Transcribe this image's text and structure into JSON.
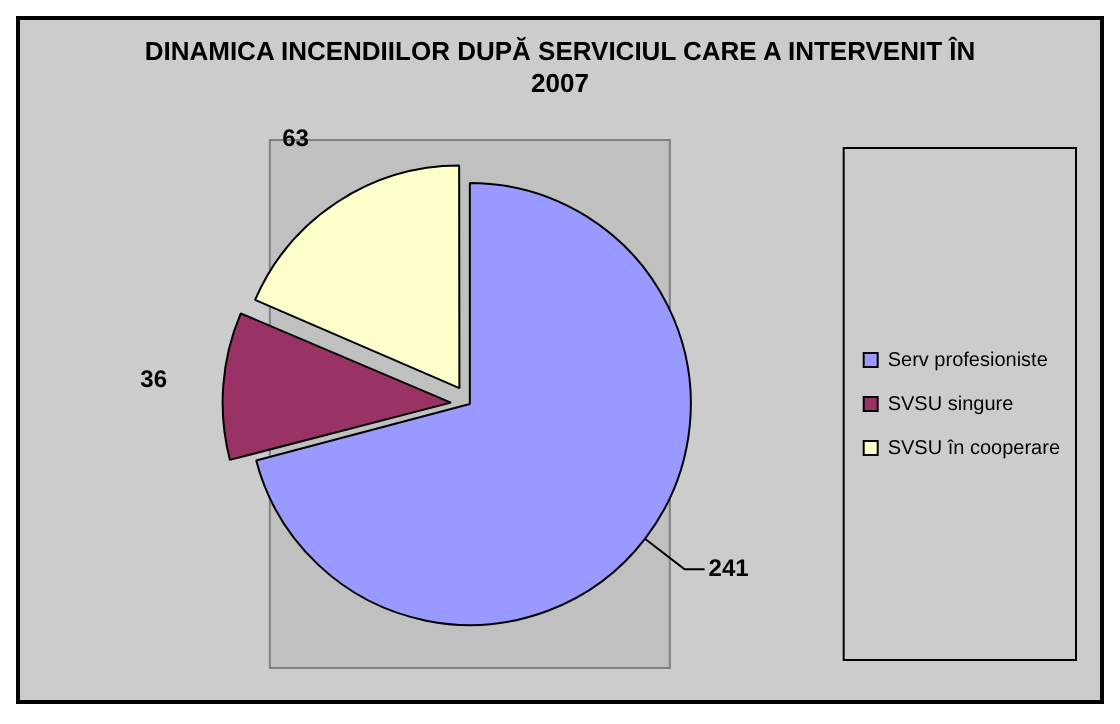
{
  "chart_data": {
    "type": "pie",
    "title": "DINAMICA INCENDIILOR  DUPĂ SERVICIUL CARE A INTERVENIT ÎN 2007",
    "categories": [
      "Serv profesioniste",
      "SVSU singure",
      "SVSU în cooperare"
    ],
    "values": [
      241,
      36,
      63
    ],
    "colors": [
      "#9999ff",
      "#993366",
      "#ffffcc"
    ],
    "data_labels": true,
    "legend": "right"
  }
}
